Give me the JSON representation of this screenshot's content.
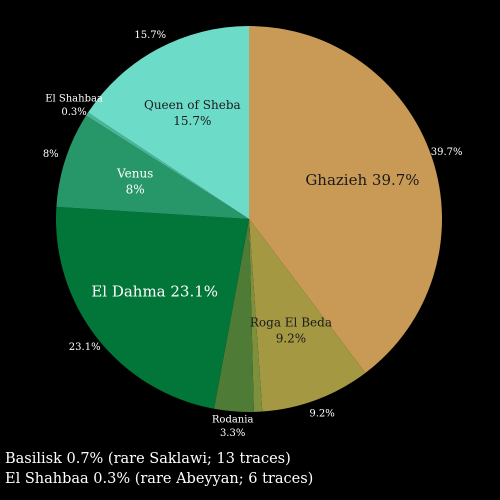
{
  "chart_data": {
    "type": "pie",
    "start_angle_deg": 0,
    "direction": "clockwise",
    "slices": [
      {
        "label": "Ghazieh",
        "value": 39.7,
        "inner_text": "Ghazieh 39.7%",
        "outer_text": "39.7%",
        "color": "#c99a55",
        "text_color": "#1a1a1a",
        "font_size": 15
      },
      {
        "label": "Roga El Beda",
        "value": 9.2,
        "inner_lines": [
          "Roga El Beda",
          "9.2%"
        ],
        "outer_text": "9.2%",
        "color": "#a59843",
        "text_color": "#1a1a1a",
        "font_size": 12
      },
      {
        "label": "Basilisk",
        "value": 0.7,
        "color": "#7e8f3d"
      },
      {
        "label": "Rodania",
        "value": 3.3,
        "outer_lines": [
          "Rodania",
          "3.3%"
        ],
        "color": "#4e7b35"
      },
      {
        "label": "El Dahma",
        "value": 23.1,
        "inner_text": "El Dahma 23.1%",
        "outer_text": "23.1%",
        "color": "#027638",
        "text_color": "#ffffff",
        "font_size": 15
      },
      {
        "label": "Venus",
        "value": 8.0,
        "inner_lines": [
          "Venus",
          "8%"
        ],
        "outer_text": "8%",
        "color": "#27976a",
        "text_color": "#ffffff",
        "font_size": 12
      },
      {
        "label": "El Shahbaa",
        "value": 0.3,
        "outer_lines": [
          "El Shahbaa",
          "0.3%"
        ],
        "color": "#4ab597"
      },
      {
        "label": "Queen of Sheba",
        "value": 15.7,
        "inner_lines": [
          "Queen of Sheba",
          "15.7%"
        ],
        "outer_text": "15.7%",
        "color": "#6cdcc9",
        "text_color": "#1a1a1a",
        "font_size": 12
      }
    ],
    "footnotes": [
      "Basilisk 0.7% (rare Saklawi; 13 traces)",
      "El Shahbaa 0.3% (rare Abeyyan; 6 traces)"
    ]
  }
}
